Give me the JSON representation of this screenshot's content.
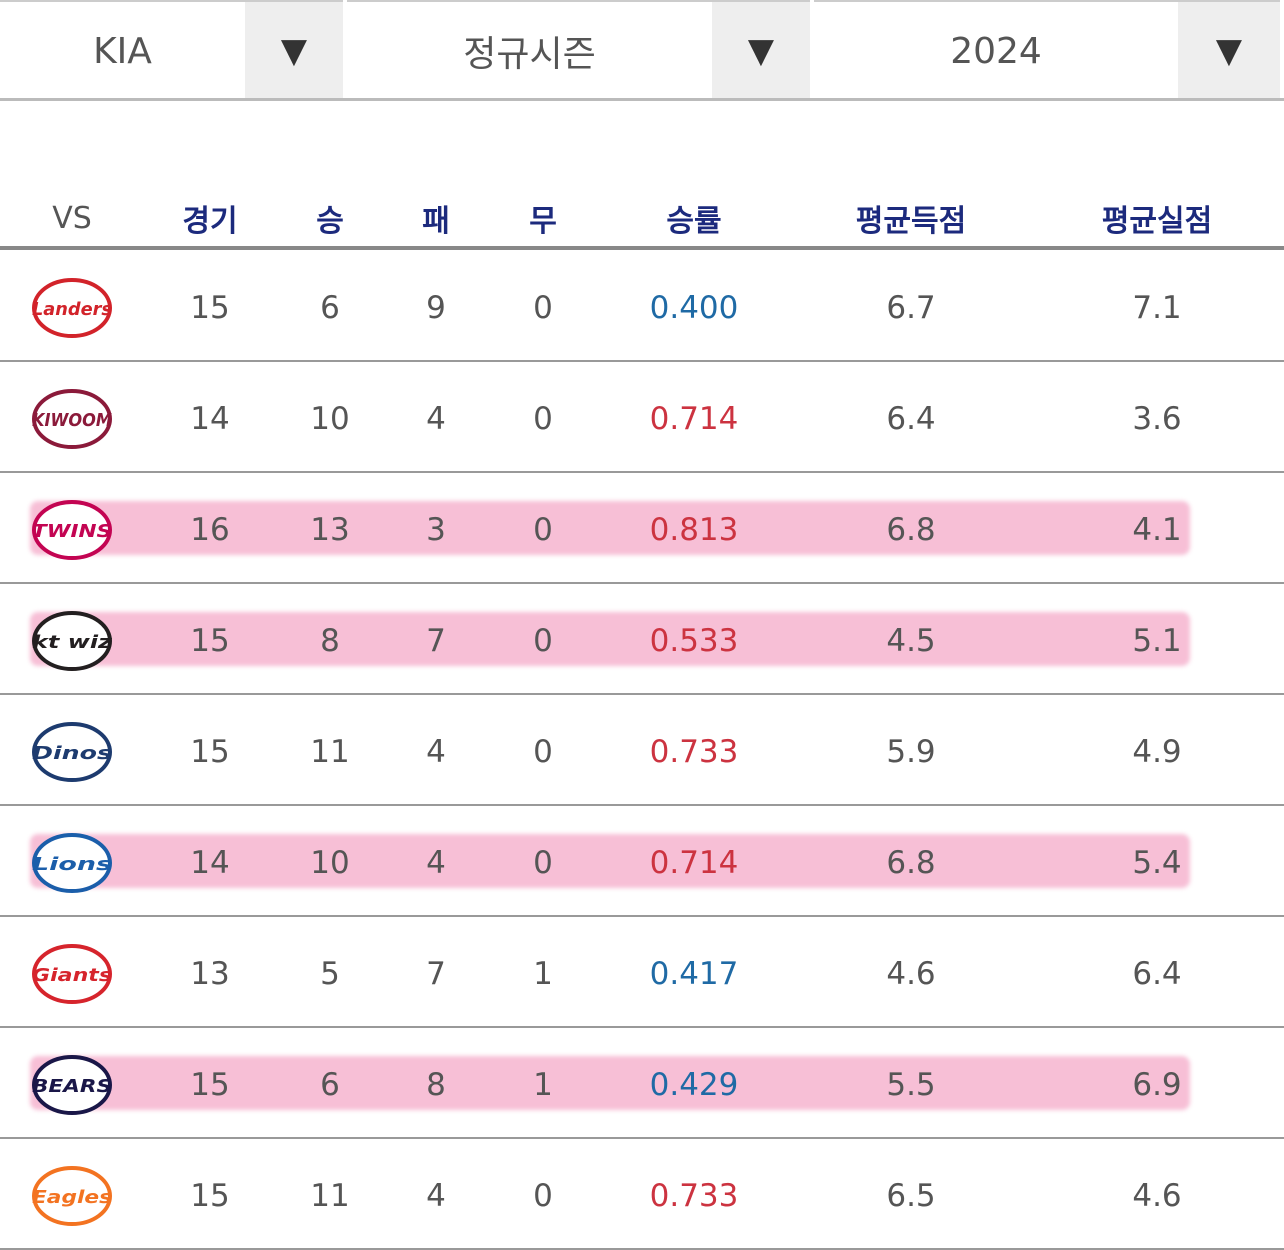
{
  "filters": [
    {
      "value": "KIA"
    },
    {
      "value": "정규시즌"
    },
    {
      "value": "2024"
    }
  ],
  "arrow": "▼",
  "table": {
    "columns": [
      "VS",
      "경기",
      "승",
      "패",
      "무",
      "승률",
      "평균득점",
      "평균실점"
    ],
    "rows": [
      {
        "logo": "Landers",
        "logo_color": "#d2232a",
        "highlight": false,
        "cells": [
          15,
          6,
          9,
          0,
          "0.400",
          6.7,
          7.1
        ]
      },
      {
        "logo": "KIWOOM",
        "logo_color": "#8b1a3a",
        "highlight": false,
        "cells": [
          14,
          10,
          4,
          0,
          "0.714",
          6.4,
          3.6
        ]
      },
      {
        "logo": "TWINS",
        "logo_color": "#c30452",
        "highlight": true,
        "cells": [
          16,
          13,
          3,
          0,
          "0.813",
          6.8,
          4.1
        ]
      },
      {
        "logo": "kt wiz",
        "logo_color": "#231f20",
        "highlight": true,
        "cells": [
          15,
          8,
          7,
          0,
          "0.533",
          4.5,
          5.1
        ]
      },
      {
        "logo": "Dinos",
        "logo_color": "#1d3b6f",
        "highlight": false,
        "cells": [
          15,
          11,
          4,
          0,
          "0.733",
          5.9,
          4.9
        ]
      },
      {
        "logo": "Lions",
        "logo_color": "#1b5eaa",
        "highlight": true,
        "cells": [
          14,
          10,
          4,
          0,
          "0.714",
          6.8,
          5.4
        ]
      },
      {
        "logo": "Giants",
        "logo_color": "#d6242c",
        "highlight": false,
        "cells": [
          13,
          5,
          7,
          1,
          "0.417",
          4.6,
          6.4
        ]
      },
      {
        "logo": "BEARS",
        "logo_color": "#1a1748",
        "highlight": true,
        "cells": [
          15,
          6,
          8,
          1,
          "0.429",
          5.5,
          6.9
        ]
      },
      {
        "logo": "Eagles",
        "logo_color": "#f37321",
        "highlight": false,
        "cells": [
          15,
          11,
          4,
          0,
          "0.733",
          6.5,
          4.6
        ]
      }
    ]
  }
}
